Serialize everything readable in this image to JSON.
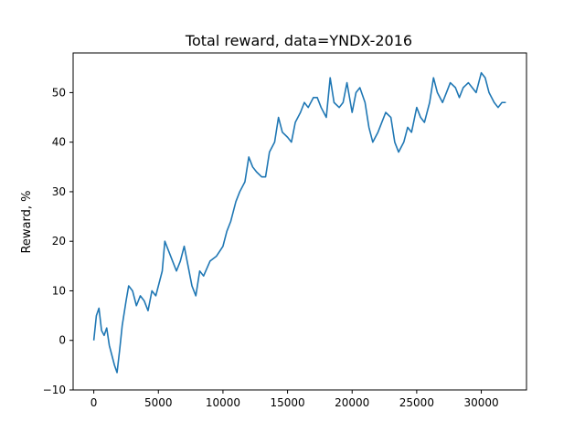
{
  "chart_data": {
    "type": "line",
    "title": "Total reward, data=YNDX-2016",
    "xlabel": "",
    "ylabel": "Reward, %",
    "xlim": [
      -1600,
      33500
    ],
    "ylim": [
      -10,
      58
    ],
    "x_ticks": [
      0,
      5000,
      10000,
      15000,
      20000,
      25000,
      30000
    ],
    "x_tick_labels": [
      "0",
      "5000",
      "10000",
      "15000",
      "20000",
      "25000",
      "30000"
    ],
    "y_ticks": [
      -10,
      0,
      10,
      20,
      30,
      40,
      50
    ],
    "y_tick_labels": [
      "−10",
      "0",
      "10",
      "20",
      "30",
      "40",
      "50"
    ],
    "grid": false,
    "legend": "none",
    "line_color": "#1f77b4",
    "series": [
      {
        "x": [
          0,
          200,
          400,
          600,
          800,
          1000,
          1200,
          1400,
          1600,
          1800,
          2000,
          2200,
          2500,
          2700,
          3000,
          3300,
          3600,
          3900,
          4200,
          4500,
          4800,
          5100,
          5300,
          5500,
          5800,
          6100,
          6400,
          6700,
          7000,
          7300,
          7600,
          7900,
          8200,
          8500,
          9000,
          9500,
          10000,
          10300,
          10600,
          11000,
          11300,
          11700,
          12000,
          12300,
          12600,
          13000,
          13300,
          13600,
          14000,
          14300,
          14600,
          15000,
          15300,
          15600,
          16000,
          16300,
          16600,
          17000,
          17300,
          17600,
          18000,
          18300,
          18600,
          19000,
          19300,
          19600,
          20000,
          20300,
          20600,
          21000,
          21300,
          21600,
          22000,
          22300,
          22600,
          23000,
          23300,
          23600,
          24000,
          24300,
          24600,
          25000,
          25300,
          25600,
          26000,
          26300,
          26600,
          27000,
          27300,
          27600,
          28000,
          28300,
          28600,
          29000,
          29300,
          29600,
          30000,
          30300,
          30600,
          31000,
          31300,
          31600,
          31900
        ],
        "y": [
          0,
          5,
          6.5,
          2,
          1,
          2.5,
          -1,
          -3,
          -5,
          -6.5,
          -2,
          3,
          8,
          11,
          10,
          7,
          9,
          8,
          6,
          10,
          9,
          12,
          14,
          20,
          18,
          16,
          14,
          16,
          19,
          15,
          11,
          9,
          14,
          13,
          16,
          17,
          19,
          22,
          24,
          28,
          30,
          32,
          37,
          35,
          34,
          33,
          33,
          38,
          40,
          45,
          42,
          41,
          40,
          44,
          46,
          48,
          47,
          49,
          49,
          47,
          45,
          53,
          48,
          47,
          48,
          52,
          46,
          50,
          51,
          48,
          43,
          40,
          42,
          44,
          46,
          45,
          40,
          38,
          40,
          43,
          42,
          47,
          45,
          44,
          48,
          53,
          50,
          48,
          50,
          52,
          51,
          49,
          51,
          52,
          51,
          50,
          54,
          53,
          50,
          48,
          47,
          48,
          48
        ]
      }
    ]
  }
}
